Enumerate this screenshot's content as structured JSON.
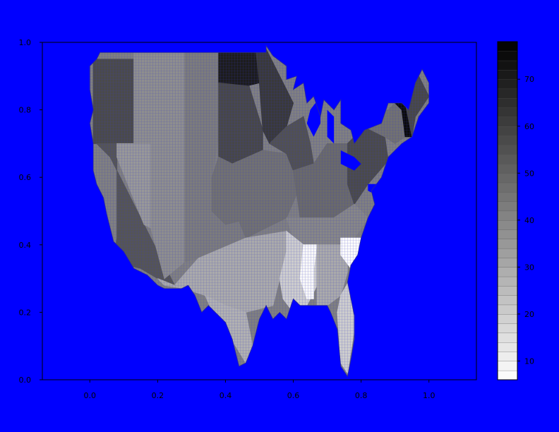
{
  "chart_data": {
    "type": "heatmap",
    "description_scale": "grayscale",
    "xlim": [
      -0.14,
      1.14
    ],
    "ylim": [
      0.0,
      1.0
    ],
    "x_ticks": [
      "0.0",
      "0.2",
      "0.4",
      "0.6",
      "0.8",
      "1.0"
    ],
    "x_tick_values": [
      0.0,
      0.2,
      0.4,
      0.6,
      0.8,
      1.0
    ],
    "y_ticks": [
      "0.0",
      "0.2",
      "0.4",
      "0.6",
      "0.8",
      "1.0"
    ],
    "y_tick_values": [
      0.0,
      0.2,
      0.4,
      0.6,
      0.8,
      1.0
    ],
    "colorbar": {
      "range": [
        6,
        78
      ],
      "tick_labels": [
        "10",
        "20",
        "30",
        "40",
        "50",
        "60",
        "70"
      ],
      "tick_values": [
        10,
        20,
        30,
        40,
        50,
        60,
        70
      ]
    },
    "regions": [
      {
        "polygon": [
          [
            0.01,
            0.95
          ],
          [
            0.13,
            0.95
          ],
          [
            0.13,
            0.7
          ],
          [
            0.01,
            0.7
          ]
        ],
        "value": 57
      },
      {
        "polygon": [
          [
            0.02,
            0.7
          ],
          [
            0.08,
            0.7
          ],
          [
            0.08,
            0.42
          ],
          [
            0.07,
            0.35
          ],
          [
            0.15,
            0.33
          ],
          [
            0.2,
            0.3
          ],
          [
            0.25,
            0.28
          ],
          [
            0.16,
            0.46
          ],
          [
            0.06,
            0.66
          ]
        ],
        "value": 54
      },
      {
        "polygon": [
          [
            0.08,
            0.7
          ],
          [
            0.18,
            0.7
          ],
          [
            0.18,
            0.45
          ],
          [
            0.16,
            0.46
          ],
          [
            0.08,
            0.66
          ]
        ],
        "value": 35
      },
      {
        "polygon": [
          [
            0.13,
            0.97
          ],
          [
            0.28,
            0.97
          ],
          [
            0.28,
            0.35
          ],
          [
            0.22,
            0.3
          ],
          [
            0.18,
            0.45
          ],
          [
            0.18,
            0.7
          ],
          [
            0.13,
            0.7
          ]
        ],
        "value": 38
      },
      {
        "polygon": [
          [
            0.28,
            0.97
          ],
          [
            0.38,
            0.97
          ],
          [
            0.38,
            0.72
          ],
          [
            0.36,
            0.6
          ],
          [
            0.36,
            0.5
          ],
          [
            0.4,
            0.46
          ],
          [
            0.44,
            0.47
          ],
          [
            0.46,
            0.42
          ],
          [
            0.32,
            0.36
          ],
          [
            0.28,
            0.35
          ]
        ],
        "value": 43
      },
      {
        "polygon": [
          [
            0.38,
            0.97
          ],
          [
            0.49,
            0.97
          ],
          [
            0.5,
            0.88
          ],
          [
            0.46,
            0.87
          ],
          [
            0.38,
            0.88
          ]
        ],
        "value": 70
      },
      {
        "polygon": [
          [
            0.38,
            0.88
          ],
          [
            0.47,
            0.87
          ],
          [
            0.51,
            0.74
          ],
          [
            0.51,
            0.68
          ],
          [
            0.42,
            0.64
          ],
          [
            0.38,
            0.66
          ]
        ],
        "value": 58
      },
      {
        "polygon": [
          [
            0.49,
            0.97
          ],
          [
            0.52,
            0.98
          ],
          [
            0.55,
            0.92
          ],
          [
            0.58,
            0.86
          ],
          [
            0.6,
            0.82
          ],
          [
            0.58,
            0.75
          ],
          [
            0.53,
            0.7
          ],
          [
            0.51,
            0.74
          ],
          [
            0.5,
            0.88
          ]
        ],
        "value": 62
      },
      {
        "polygon": [
          [
            0.38,
            0.66
          ],
          [
            0.42,
            0.64
          ],
          [
            0.51,
            0.68
          ],
          [
            0.58,
            0.67
          ],
          [
            0.6,
            0.62
          ],
          [
            0.61,
            0.55
          ],
          [
            0.58,
            0.48
          ],
          [
            0.46,
            0.42
          ],
          [
            0.44,
            0.47
          ],
          [
            0.4,
            0.46
          ],
          [
            0.36,
            0.5
          ],
          [
            0.36,
            0.6
          ]
        ],
        "value": 46
      },
      {
        "polygon": [
          [
            0.53,
            0.7
          ],
          [
            0.58,
            0.75
          ],
          [
            0.63,
            0.78
          ],
          [
            0.65,
            0.7
          ],
          [
            0.66,
            0.64
          ],
          [
            0.6,
            0.62
          ],
          [
            0.58,
            0.67
          ]
        ],
        "value": 55
      },
      {
        "polygon": [
          [
            0.6,
            0.62
          ],
          [
            0.66,
            0.64
          ],
          [
            0.7,
            0.7
          ],
          [
            0.76,
            0.7
          ],
          [
            0.76,
            0.58
          ],
          [
            0.78,
            0.52
          ],
          [
            0.72,
            0.48
          ],
          [
            0.62,
            0.48
          ],
          [
            0.61,
            0.55
          ]
        ],
        "value": 48
      },
      {
        "polygon": [
          [
            0.76,
            0.7
          ],
          [
            0.81,
            0.75
          ],
          [
            0.87,
            0.72
          ],
          [
            0.88,
            0.65
          ],
          [
            0.82,
            0.58
          ],
          [
            0.78,
            0.52
          ],
          [
            0.76,
            0.58
          ]
        ],
        "value": 57
      },
      {
        "polygon": [
          [
            0.58,
            0.48
          ],
          [
            0.62,
            0.48
          ],
          [
            0.72,
            0.48
          ],
          [
            0.78,
            0.52
          ],
          [
            0.82,
            0.48
          ],
          [
            0.78,
            0.42
          ],
          [
            0.72,
            0.4
          ],
          [
            0.64,
            0.4
          ],
          [
            0.6,
            0.42
          ]
        ],
        "value": 40
      },
      {
        "polygon": [
          [
            0.81,
            0.78
          ],
          [
            0.88,
            0.8
          ],
          [
            0.9,
            0.82
          ],
          [
            0.92,
            0.8
          ],
          [
            0.93,
            0.72
          ],
          [
            0.9,
            0.7
          ],
          [
            0.87,
            0.72
          ],
          [
            0.81,
            0.75
          ]
        ],
        "value": 46
      },
      {
        "polygon": [
          [
            0.9,
            0.82
          ],
          [
            0.93,
            0.82
          ],
          [
            0.95,
            0.72
          ],
          [
            0.93,
            0.72
          ],
          [
            0.92,
            0.8
          ]
        ],
        "value": 75
      },
      {
        "polygon": [
          [
            0.93,
            0.82
          ],
          [
            0.97,
            0.9
          ],
          [
            1.0,
            0.84
          ],
          [
            0.96,
            0.78
          ],
          [
            0.95,
            0.72
          ]
        ],
        "value": 58
      },
      {
        "polygon": [
          [
            0.2,
            0.3
          ],
          [
            0.25,
            0.28
          ],
          [
            0.32,
            0.36
          ],
          [
            0.46,
            0.42
          ],
          [
            0.58,
            0.44
          ],
          [
            0.58,
            0.38
          ],
          [
            0.56,
            0.3
          ],
          [
            0.54,
            0.22
          ],
          [
            0.46,
            0.2
          ],
          [
            0.4,
            0.22
          ],
          [
            0.34,
            0.25
          ],
          [
            0.28,
            0.27
          ],
          [
            0.22,
            0.28
          ]
        ],
        "value": 30
      },
      {
        "polygon": [
          [
            0.34,
            0.25
          ],
          [
            0.4,
            0.22
          ],
          [
            0.46,
            0.2
          ],
          [
            0.48,
            0.1
          ],
          [
            0.46,
            0.05
          ],
          [
            0.43,
            0.1
          ],
          [
            0.38,
            0.16
          ]
        ],
        "value": 28
      },
      {
        "polygon": [
          [
            0.58,
            0.44
          ],
          [
            0.63,
            0.4
          ],
          [
            0.67,
            0.38
          ],
          [
            0.67,
            0.28
          ],
          [
            0.64,
            0.22
          ],
          [
            0.6,
            0.2
          ],
          [
            0.57,
            0.24
          ],
          [
            0.56,
            0.3
          ],
          [
            0.58,
            0.38
          ]
        ],
        "value": 20
      },
      {
        "polygon": [
          [
            0.63,
            0.4
          ],
          [
            0.67,
            0.4
          ],
          [
            0.66,
            0.33
          ],
          [
            0.66,
            0.24
          ],
          [
            0.64,
            0.24
          ],
          [
            0.62,
            0.3
          ]
        ],
        "value": 8
      },
      {
        "polygon": [
          [
            0.67,
            0.4
          ],
          [
            0.72,
            0.4
          ],
          [
            0.76,
            0.4
          ],
          [
            0.76,
            0.32
          ],
          [
            0.74,
            0.25
          ],
          [
            0.7,
            0.22
          ],
          [
            0.67,
            0.22
          ],
          [
            0.67,
            0.3
          ]
        ],
        "value": 30
      },
      {
        "polygon": [
          [
            0.74,
            0.42
          ],
          [
            0.82,
            0.42
          ],
          [
            0.8,
            0.34
          ],
          [
            0.77,
            0.33
          ],
          [
            0.74,
            0.37
          ]
        ],
        "value": 7
      },
      {
        "polygon": [
          [
            0.74,
            0.25
          ],
          [
            0.78,
            0.32
          ],
          [
            0.8,
            0.3
          ],
          [
            0.78,
            0.15
          ],
          [
            0.76,
            0.02
          ],
          [
            0.74,
            0.05
          ],
          [
            0.73,
            0.2
          ]
        ],
        "value": 20
      }
    ],
    "outline": [
      [
        0.0,
        0.93
      ],
      [
        0.02,
        0.95
      ],
      [
        0.03,
        0.97
      ],
      [
        0.52,
        0.97
      ],
      [
        0.52,
        0.99
      ],
      [
        0.54,
        0.96
      ],
      [
        0.58,
        0.93
      ],
      [
        0.58,
        0.89
      ],
      [
        0.61,
        0.9
      ],
      [
        0.6,
        0.86
      ],
      [
        0.63,
        0.88
      ],
      [
        0.64,
        0.82
      ],
      [
        0.66,
        0.84
      ],
      [
        0.68,
        0.78
      ],
      [
        0.69,
        0.83
      ],
      [
        0.72,
        0.8
      ],
      [
        0.74,
        0.83
      ],
      [
        0.74,
        0.76
      ],
      [
        0.77,
        0.74
      ],
      [
        0.78,
        0.7
      ],
      [
        0.81,
        0.74
      ],
      [
        0.86,
        0.76
      ],
      [
        0.88,
        0.82
      ],
      [
        0.92,
        0.82
      ],
      [
        0.94,
        0.8
      ],
      [
        0.96,
        0.88
      ],
      [
        0.98,
        0.92
      ],
      [
        1.0,
        0.88
      ],
      [
        1.0,
        0.82
      ],
      [
        0.97,
        0.78
      ],
      [
        0.95,
        0.72
      ],
      [
        0.92,
        0.7
      ],
      [
        0.88,
        0.66
      ],
      [
        0.86,
        0.6
      ],
      [
        0.83,
        0.56
      ],
      [
        0.84,
        0.52
      ],
      [
        0.82,
        0.48
      ],
      [
        0.8,
        0.42
      ],
      [
        0.79,
        0.37
      ],
      [
        0.77,
        0.34
      ],
      [
        0.76,
        0.29
      ],
      [
        0.78,
        0.19
      ],
      [
        0.78,
        0.12
      ],
      [
        0.77,
        0.06
      ],
      [
        0.76,
        0.01
      ],
      [
        0.74,
        0.04
      ],
      [
        0.73,
        0.15
      ],
      [
        0.71,
        0.2
      ],
      [
        0.7,
        0.22
      ],
      [
        0.67,
        0.22
      ],
      [
        0.62,
        0.22
      ],
      [
        0.6,
        0.24
      ],
      [
        0.58,
        0.18
      ],
      [
        0.56,
        0.2
      ],
      [
        0.54,
        0.18
      ],
      [
        0.52,
        0.22
      ],
      [
        0.5,
        0.18
      ],
      [
        0.48,
        0.1
      ],
      [
        0.46,
        0.05
      ],
      [
        0.44,
        0.04
      ],
      [
        0.42,
        0.12
      ],
      [
        0.4,
        0.17
      ],
      [
        0.37,
        0.2
      ],
      [
        0.35,
        0.22
      ],
      [
        0.33,
        0.2
      ],
      [
        0.31,
        0.25
      ],
      [
        0.29,
        0.28
      ],
      [
        0.27,
        0.27
      ],
      [
        0.24,
        0.27
      ],
      [
        0.22,
        0.27
      ],
      [
        0.2,
        0.28
      ],
      [
        0.17,
        0.31
      ],
      [
        0.13,
        0.33
      ],
      [
        0.1,
        0.38
      ],
      [
        0.07,
        0.41
      ],
      [
        0.06,
        0.45
      ],
      [
        0.05,
        0.49
      ],
      [
        0.04,
        0.54
      ],
      [
        0.02,
        0.58
      ],
      [
        0.01,
        0.62
      ],
      [
        0.01,
        0.7
      ],
      [
        0.0,
        0.76
      ],
      [
        0.01,
        0.8
      ],
      [
        0.0,
        0.86
      ]
    ],
    "water": [
      {
        "polygon": [
          [
            0.65,
            0.8
          ],
          [
            0.68,
            0.84
          ],
          [
            0.68,
            0.76
          ],
          [
            0.66,
            0.72
          ],
          [
            0.64,
            0.76
          ]
        ]
      },
      {
        "polygon": [
          [
            0.7,
            0.8
          ],
          [
            0.72,
            0.78
          ],
          [
            0.72,
            0.7
          ],
          [
            0.7,
            0.72
          ]
        ]
      },
      {
        "polygon": [
          [
            0.74,
            0.68
          ],
          [
            0.78,
            0.66
          ],
          [
            0.8,
            0.64
          ],
          [
            0.78,
            0.62
          ],
          [
            0.74,
            0.64
          ]
        ]
      },
      {
        "polygon": [
          [
            0.82,
            0.58
          ],
          [
            0.85,
            0.58
          ],
          [
            0.84,
            0.55
          ],
          [
            0.82,
            0.56
          ]
        ]
      }
    ]
  }
}
